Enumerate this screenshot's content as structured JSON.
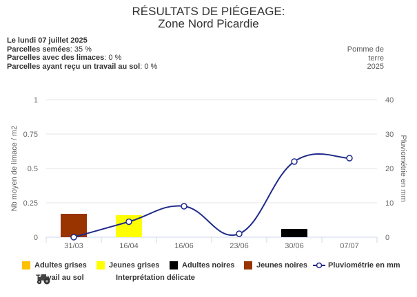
{
  "header": {
    "title": "RÉSULTATS DE PIÉGEAGE:",
    "subtitle": "Zone Nord Picardie"
  },
  "info": {
    "date": "Le lundi 07 juillet 2025",
    "semees_label": "Parcelles semées",
    "semees_value": ": 35 %",
    "limaces_label": "Parcelles avec des limaces",
    "limaces_value": ": 0 %",
    "travail_label": "Parcelles ayant reçu un travail au sol",
    "travail_value": ": 0 %"
  },
  "crop": {
    "line1": "Pomme de",
    "line2": "terre",
    "line3": "2025"
  },
  "legend": {
    "adultes_grises": "Adultes grises",
    "jeunes_grises": "Jeunes grises",
    "adultes_noires": "Adultes noires",
    "jeunes_noires": "Jeunes noires",
    "pluvio": "Pluviométrie en mm",
    "travail": "Travail au sol",
    "interpretation": "Interprétation délicate"
  },
  "chart_data": {
    "type": "bar+line",
    "categories": [
      "31/03",
      "16/04",
      "16/06",
      "23/06",
      "30/06",
      "07/07"
    ],
    "ylabel": "Nb moyen de limace / m2",
    "ylabel_right": "Pluviométrie en mm",
    "ylim": [
      0,
      1
    ],
    "ylim_right": [
      0,
      40
    ],
    "yticks": [
      "0",
      "0.25",
      "0.5",
      "0.75",
      "1"
    ],
    "yticks_right": [
      "0",
      "10",
      "20",
      "30",
      "40"
    ],
    "series": [
      {
        "name": "Adultes grises",
        "kind": "bar",
        "color": "#FFC000",
        "values": [
          0,
          0,
          0,
          0,
          0,
          0
        ]
      },
      {
        "name": "Jeunes grises",
        "kind": "bar",
        "color": "#FFFF00",
        "values": [
          0,
          0.16,
          0,
          0,
          0,
          0
        ]
      },
      {
        "name": "Adultes noires",
        "kind": "bar",
        "color": "#000000",
        "values": [
          0,
          0,
          0,
          0,
          0.06,
          0
        ]
      },
      {
        "name": "Jeunes noires",
        "kind": "bar",
        "color": "#993300",
        "values": [
          0.17,
          0,
          0,
          0,
          0,
          0
        ]
      },
      {
        "name": "Pluviométrie en mm",
        "kind": "line",
        "axis": "right",
        "color": "#1F2A8A",
        "values": [
          0,
          4.5,
          9,
          1,
          22,
          23
        ]
      }
    ]
  }
}
